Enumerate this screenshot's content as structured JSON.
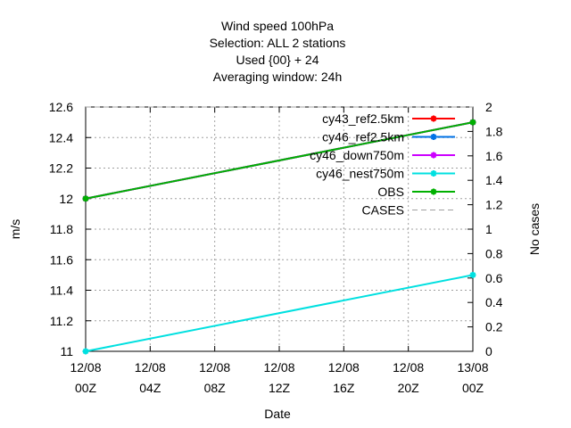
{
  "chart_data": {
    "type": "line",
    "title_lines": [
      "Wind speed 100hPa",
      "Selection: ALL      2 stations",
      "Used {00} + 24",
      "Averaging window: 24h"
    ],
    "xlabel": "Date",
    "ylabel": "m/s",
    "y2label": "No cases",
    "x_ticks": [
      {
        "x": 0,
        "line1": "12/08",
        "line2": "00Z"
      },
      {
        "x": 4,
        "line1": "12/08",
        "line2": "04Z"
      },
      {
        "x": 8,
        "line1": "12/08",
        "line2": "08Z"
      },
      {
        "x": 12,
        "line1": "12/08",
        "line2": "12Z"
      },
      {
        "x": 16,
        "line1": "12/08",
        "line2": "16Z"
      },
      {
        "x": 20,
        "line1": "12/08",
        "line2": "20Z"
      },
      {
        "x": 24,
        "line1": "13/08",
        "line2": "00Z"
      }
    ],
    "xlim": [
      0,
      24
    ],
    "ylim": [
      11,
      12.6
    ],
    "y2lim": [
      0,
      2
    ],
    "y_ticks": [
      "11",
      "11.2",
      "11.4",
      "11.6",
      "11.8",
      "12",
      "12.2",
      "12.4",
      "12.6"
    ],
    "y2_ticks": [
      "0",
      "0.2",
      "0.4",
      "0.6",
      "0.8",
      "1",
      "1.2",
      "1.4",
      "1.6",
      "1.8",
      "2"
    ],
    "grid": true,
    "legend_position": "top-right",
    "series": [
      {
        "name": "cy43_ref2.5km",
        "color": "#ff0000",
        "axis": "y",
        "style": "solid",
        "marker": true,
        "x": [
          0,
          24
        ],
        "y": [
          12.0,
          12.5
        ]
      },
      {
        "name": "cy46_ref2.5km",
        "color": "#0072e6",
        "axis": "y",
        "style": "solid",
        "marker": true,
        "x": [
          0,
          24
        ],
        "y": [
          12.0,
          12.5
        ]
      },
      {
        "name": "cy46_down750m",
        "color": "#cc00ff",
        "axis": "y",
        "style": "solid",
        "marker": true,
        "x": [
          0,
          24
        ],
        "y": [
          12.0,
          12.5
        ]
      },
      {
        "name": "cy46_nest750m",
        "color": "#00e0e0",
        "axis": "y",
        "style": "solid",
        "marker": true,
        "x": [
          0,
          24
        ],
        "y": [
          11.0,
          11.5
        ]
      },
      {
        "name": "OBS",
        "color": "#00b000",
        "axis": "y",
        "style": "solid",
        "marker": true,
        "x": [
          0,
          24
        ],
        "y": [
          12.0,
          12.5
        ]
      },
      {
        "name": "CASES",
        "color": "#a0a0a0",
        "axis": "y2",
        "style": "dashed",
        "marker": false,
        "x": [
          0,
          24
        ],
        "y": [
          2,
          2
        ]
      }
    ]
  }
}
